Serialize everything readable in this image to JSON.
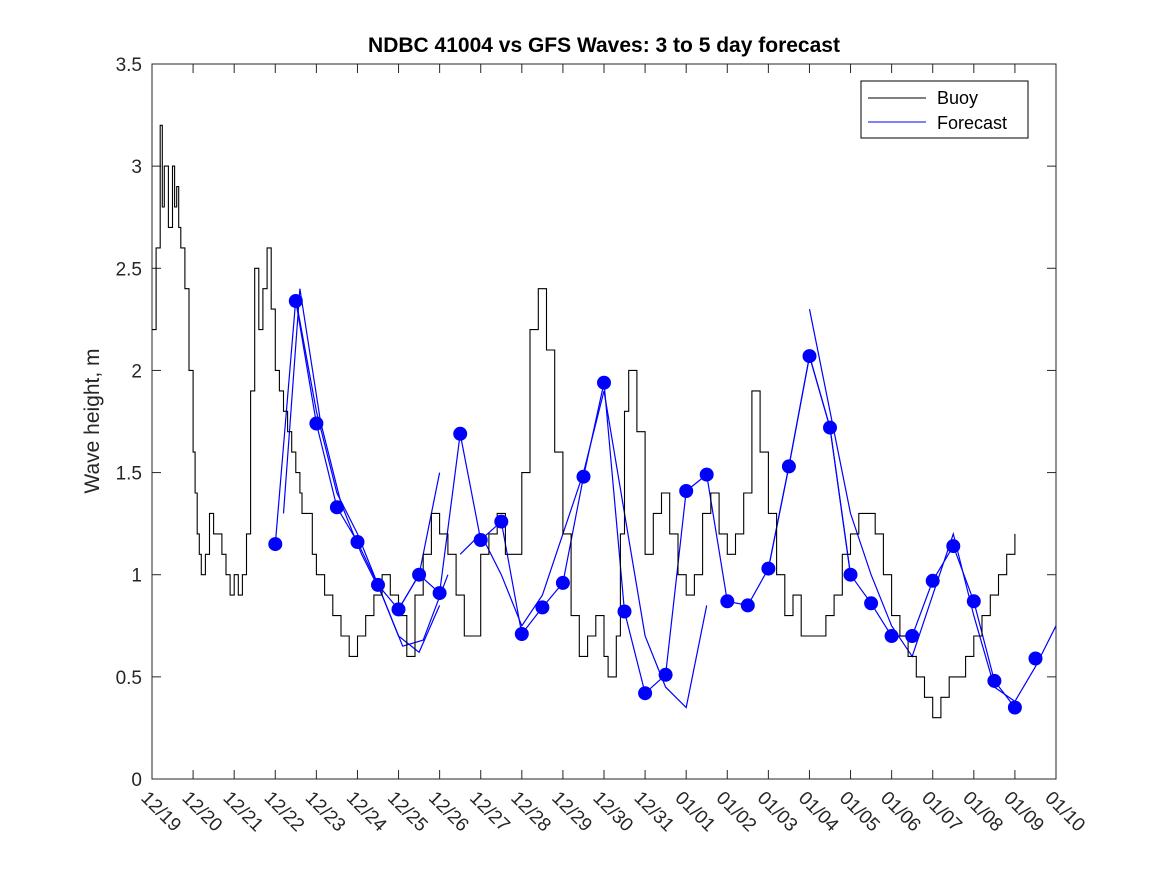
{
  "chart_data": {
    "type": "line",
    "title": "NDBC 41004 vs GFS Waves: 3 to 5 day forecast",
    "xlabel": "",
    "ylabel": "Wave height, m",
    "xlim": [
      0,
      22
    ],
    "ylim": [
      0,
      3.5
    ],
    "x_tick_labels": [
      "12/19",
      "12/20",
      "12/21",
      "12/22",
      "12/23",
      "12/24",
      "12/25",
      "12/26",
      "12/27",
      "12/28",
      "12/29",
      "12/30",
      "12/31",
      "01/01",
      "01/02",
      "01/03",
      "01/04",
      "01/05",
      "01/06",
      "01/07",
      "01/08",
      "01/09",
      "01/10"
    ],
    "y_ticks": [
      0,
      0.5,
      1,
      1.5,
      2,
      2.5,
      3,
      3.5
    ],
    "y_tick_labels": [
      "0",
      "0.5",
      "1",
      "1.5",
      "2",
      "2.5",
      "3",
      "3.5"
    ],
    "grid": false,
    "legend": {
      "position": "top-right",
      "entries": [
        "Buoy",
        "Forecast"
      ]
    },
    "colors": {
      "buoy": "#000000",
      "forecast": "#0000ff"
    },
    "buoy": {
      "name": "Buoy",
      "x": [
        0,
        0.1,
        0.2,
        0.25,
        0.3,
        0.4,
        0.5,
        0.55,
        0.6,
        0.65,
        0.7,
        0.8,
        0.9,
        1.0,
        1.05,
        1.1,
        1.15,
        1.2,
        1.3,
        1.4,
        1.5,
        1.6,
        1.7,
        1.8,
        1.9,
        2.0,
        2.1,
        2.2,
        2.3,
        2.4,
        2.5,
        2.6,
        2.7,
        2.8,
        2.9,
        3.0,
        3.1,
        3.2,
        3.3,
        3.4,
        3.5,
        3.6,
        3.65,
        3.7,
        3.8,
        3.9,
        4.0,
        4.2,
        4.4,
        4.6,
        4.8,
        5.0,
        5.2,
        5.4,
        5.6,
        5.8,
        6.0,
        6.2,
        6.4,
        6.6,
        6.8,
        7.0,
        7.2,
        7.4,
        7.6,
        7.8,
        8.0,
        8.2,
        8.4,
        8.6,
        8.8,
        9.0,
        9.2,
        9.4,
        9.6,
        9.8,
        10.0,
        10.2,
        10.4,
        10.6,
        10.8,
        11.0,
        11.1,
        11.2,
        11.3,
        11.4,
        11.5,
        11.6,
        11.8,
        12.0,
        12.2,
        12.4,
        12.6,
        12.8,
        13.0,
        13.2,
        13.4,
        13.6,
        13.8,
        14.0,
        14.2,
        14.4,
        14.6,
        14.8,
        15.0,
        15.2,
        15.4,
        15.6,
        15.8,
        16.0,
        16.2,
        16.4,
        16.6,
        16.8,
        17.0,
        17.2,
        17.4,
        17.6,
        17.8,
        18.0,
        18.2,
        18.4,
        18.6,
        18.8,
        19.0,
        19.2,
        19.4,
        19.6,
        19.8,
        20.0,
        20.2,
        20.4,
        20.6,
        20.8,
        21.0
      ],
      "y": [
        2.2,
        2.6,
        3.2,
        2.8,
        3.0,
        2.7,
        3.0,
        2.8,
        2.9,
        2.7,
        2.6,
        2.4,
        2.0,
        1.6,
        1.4,
        1.2,
        1.1,
        1.0,
        1.1,
        1.3,
        1.2,
        1.2,
        1.1,
        1.0,
        0.9,
        1.0,
        0.9,
        1.0,
        1.2,
        1.9,
        2.5,
        2.2,
        2.4,
        2.6,
        2.3,
        2.0,
        1.9,
        1.8,
        1.7,
        1.6,
        1.5,
        1.4,
        1.3,
        1.3,
        1.3,
        1.1,
        1.0,
        0.9,
        0.8,
        0.7,
        0.6,
        0.7,
        0.8,
        0.9,
        1.0,
        0.9,
        0.8,
        0.6,
        0.9,
        1.1,
        1.3,
        1.2,
        1.1,
        0.9,
        0.7,
        0.7,
        1.1,
        1.2,
        1.3,
        1.1,
        1.1,
        1.5,
        2.2,
        2.4,
        2.1,
        1.6,
        1.2,
        0.8,
        0.6,
        0.7,
        0.8,
        0.6,
        0.5,
        0.5,
        0.7,
        1.2,
        1.8,
        2.0,
        1.7,
        1.1,
        1.3,
        1.4,
        1.2,
        1.0,
        0.9,
        1.0,
        1.3,
        1.4,
        1.2,
        1.1,
        1.2,
        1.4,
        1.9,
        1.6,
        1.3,
        1.0,
        0.8,
        0.9,
        0.7,
        0.7,
        0.7,
        0.8,
        0.9,
        1.1,
        1.2,
        1.3,
        1.3,
        1.2,
        1.0,
        0.8,
        0.7,
        0.6,
        0.5,
        0.4,
        0.3,
        0.4,
        0.5,
        0.5,
        0.6,
        0.7,
        0.8,
        0.9,
        1.0,
        1.1,
        1.2
      ],
      "note": "Buoy series is an approximate digitization of the stepped observation line."
    },
    "forecasts": [
      {
        "x": [
          3.0,
          3.5,
          4.0,
          4.5,
          5.0,
          5.5,
          6.0,
          6.5,
          7.0
        ],
        "y": [
          1.15,
          2.35,
          1.8,
          1.4,
          1.2,
          0.95,
          0.7,
          0.62,
          0.85
        ]
      },
      {
        "x": [
          3.2,
          3.6,
          4.1,
          4.6,
          5.1,
          5.6,
          6.1,
          6.6,
          7.2
        ],
        "y": [
          1.3,
          2.4,
          1.75,
          1.35,
          1.1,
          0.9,
          0.65,
          0.68,
          1.0
        ]
      },
      {
        "x": [
          3.5,
          4.0,
          4.5,
          5.0,
          5.5,
          6.0,
          6.5,
          7.0
        ],
        "y": [
          2.34,
          1.74,
          1.33,
          1.16,
          0.95,
          0.83,
          1.0,
          1.5
        ]
      },
      {
        "x": [
          6.0,
          6.5,
          7.0,
          7.5,
          8.0,
          8.5,
          9.0,
          9.5,
          10.0,
          10.5,
          11.0
        ],
        "y": [
          0.83,
          1.0,
          0.91,
          1.69,
          1.17,
          1.26,
          0.71,
          0.84,
          0.96,
          1.48,
          1.94
        ]
      },
      {
        "x": [
          7.5,
          8.0,
          8.5,
          9.0,
          9.5,
          10.0,
          10.5,
          11.0,
          11.5,
          12.0,
          12.5,
          13.0,
          13.5
        ],
        "y": [
          1.1,
          1.2,
          1.0,
          0.75,
          0.9,
          1.2,
          1.5,
          1.9,
          1.3,
          0.7,
          0.45,
          0.35,
          0.85
        ]
      },
      {
        "x": [
          11.0,
          11.5,
          12.0,
          12.5,
          13.0,
          13.5,
          14.0,
          14.5,
          15.0,
          15.5,
          16.0,
          16.5,
          17.0
        ],
        "y": [
          1.94,
          0.82,
          0.42,
          0.51,
          1.41,
          1.49,
          0.87,
          0.85,
          1.03,
          1.53,
          2.07,
          1.72,
          1.0
        ]
      },
      {
        "x": [
          15.0,
          15.5,
          16.0,
          16.5,
          17.0,
          17.5,
          18.0,
          18.5,
          19.0,
          19.5,
          20.0,
          20.5,
          21.0
        ],
        "y": [
          1.03,
          1.53,
          2.07,
          1.72,
          1.0,
          0.86,
          0.7,
          0.7,
          0.97,
          1.14,
          0.87,
          0.48,
          0.35
        ]
      },
      {
        "x": [
          16.0,
          16.5,
          17.0,
          17.5,
          18.0,
          18.5,
          19.0,
          19.5,
          20.0,
          20.5,
          21.0,
          21.5,
          22.0
        ],
        "y": [
          2.3,
          1.8,
          1.3,
          1.0,
          0.75,
          0.6,
          0.9,
          1.2,
          0.8,
          0.45,
          0.38,
          0.55,
          0.75
        ]
      }
    ],
    "forecast_points": {
      "x": [
        3.0,
        3.5,
        4.0,
        4.5,
        5.0,
        5.5,
        6.0,
        6.5,
        7.0,
        7.5,
        8.0,
        8.5,
        9.0,
        9.5,
        10.0,
        10.5,
        11.0,
        11.5,
        12.0,
        12.5,
        13.0,
        13.5,
        14.0,
        14.5,
        15.0,
        15.5,
        16.0,
        16.5,
        17.0,
        17.5,
        18.0,
        18.5,
        19.0,
        19.5,
        20.0,
        20.5,
        21.0,
        21.5
      ],
      "y": [
        1.15,
        2.34,
        1.74,
        1.33,
        1.16,
        0.95,
        0.83,
        1.0,
        0.91,
        1.69,
        1.17,
        1.26,
        0.71,
        0.84,
        0.96,
        1.48,
        1.94,
        0.82,
        0.42,
        0.51,
        1.41,
        1.49,
        0.87,
        0.85,
        1.03,
        1.53,
        2.07,
        1.72,
        1.0,
        0.86,
        0.7,
        0.7,
        0.97,
        1.14,
        0.87,
        0.48,
        0.35,
        0.59
      ]
    }
  }
}
